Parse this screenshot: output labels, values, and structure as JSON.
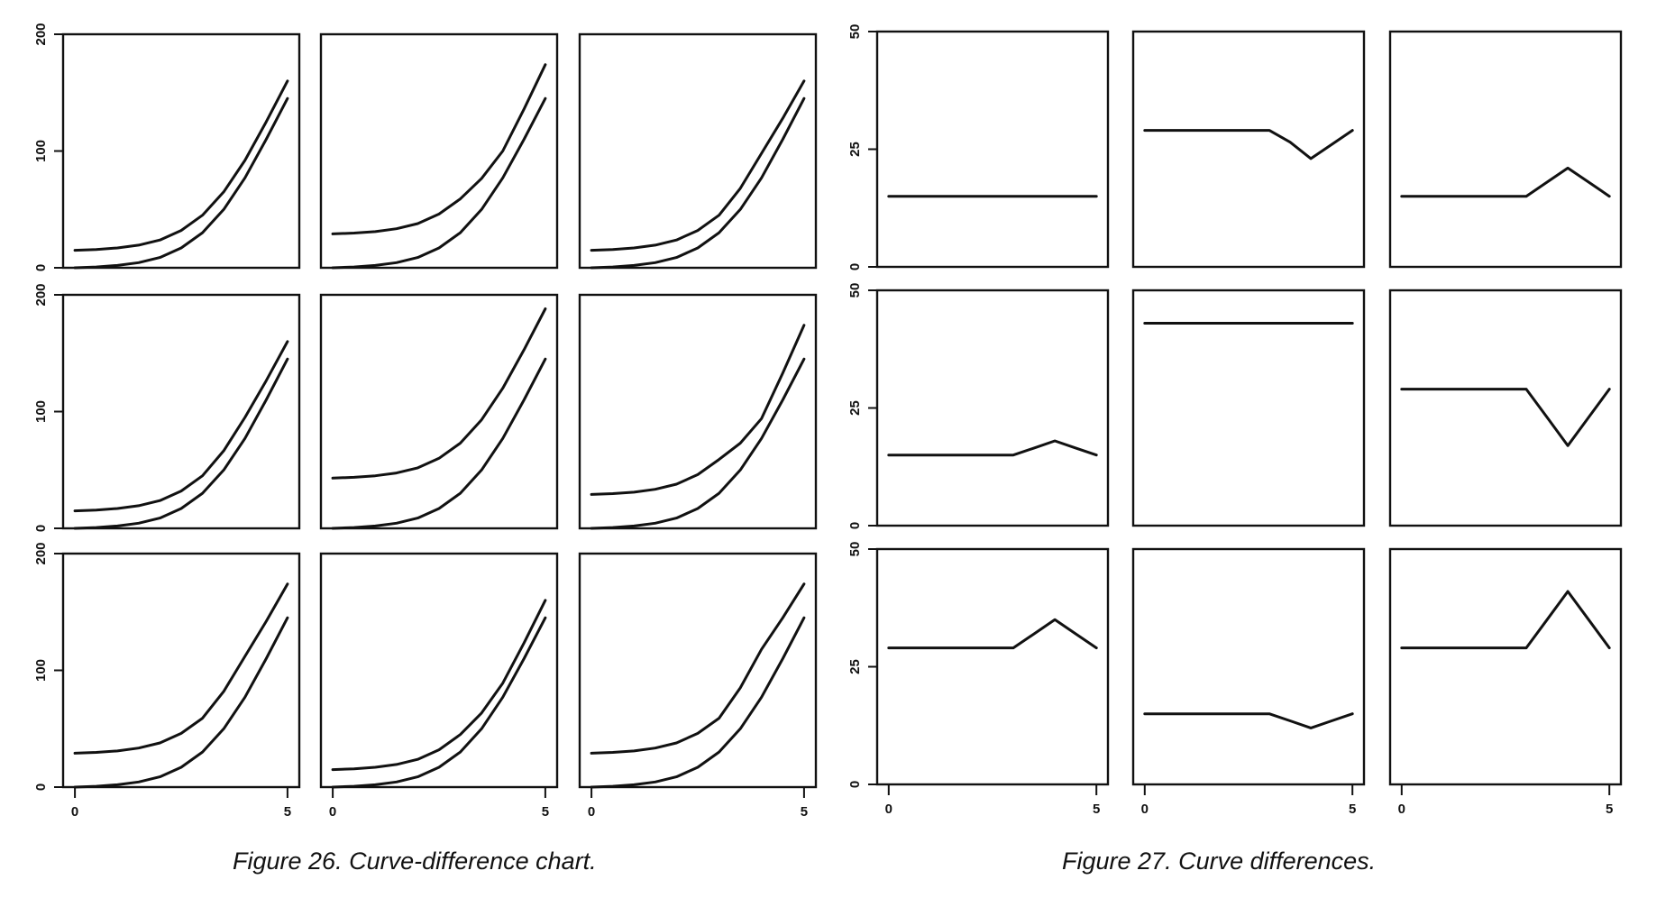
{
  "figure26": {
    "caption": "Figure 26. Curve-difference chart.",
    "y_ticks": [
      "0",
      "100",
      "200"
    ],
    "x_ticks": [
      "0",
      "5"
    ]
  },
  "figure27": {
    "caption": "Figure 27. Curve differences.",
    "y_ticks": [
      "0",
      "25",
      "50"
    ],
    "x_ticks": [
      "0",
      "5"
    ]
  },
  "chart_data": [
    {
      "type": "line",
      "layout": "3x3 small multiples",
      "xlim": [
        0,
        5
      ],
      "ylim": [
        0,
        200
      ],
      "x": [
        0,
        0.5,
        1,
        1.5,
        2,
        2.5,
        3,
        3.5,
        4,
        4.5,
        5
      ],
      "x_ticks": [
        0,
        5
      ],
      "y_ticks": [
        0,
        100,
        200
      ],
      "grid": false,
      "base_curve": [
        0,
        0.7,
        2.0,
        4.4,
        8.8,
        17,
        30,
        50,
        77,
        110,
        145
      ],
      "panels": [
        {
          "row": 1,
          "col": 1,
          "offset": [
            15,
            15,
            15,
            15,
            15,
            15,
            15,
            15,
            15,
            15,
            15
          ]
        },
        {
          "row": 1,
          "col": 2,
          "offset": [
            29,
            29,
            29,
            29,
            29,
            29,
            29,
            26.5,
            23,
            26,
            29
          ]
        },
        {
          "row": 1,
          "col": 3,
          "offset": [
            15,
            15,
            15,
            15,
            15,
            15,
            15,
            18,
            21,
            18,
            15
          ]
        },
        {
          "row": 2,
          "col": 1,
          "offset": [
            15,
            15,
            15,
            15,
            15,
            15,
            15,
            16.5,
            18,
            16.5,
            15
          ]
        },
        {
          "row": 2,
          "col": 2,
          "offset": [
            43,
            43,
            43,
            43,
            43,
            43,
            43,
            43,
            43,
            43,
            43
          ]
        },
        {
          "row": 2,
          "col": 3,
          "offset": [
            29,
            29,
            29,
            29,
            29,
            29,
            29,
            23,
            17,
            23,
            29
          ]
        },
        {
          "row": 3,
          "col": 1,
          "offset": [
            29,
            29,
            29,
            29,
            29,
            29,
            29,
            32,
            35,
            32,
            29
          ]
        },
        {
          "row": 3,
          "col": 2,
          "offset": [
            15,
            15,
            15,
            15,
            15,
            15,
            15,
            13.5,
            12,
            13.5,
            15
          ]
        },
        {
          "row": 3,
          "col": 3,
          "offset": [
            29,
            29,
            29,
            29,
            29,
            29,
            29,
            35,
            41,
            35,
            29
          ]
        }
      ]
    },
    {
      "type": "line",
      "layout": "3x3 small multiples",
      "xlim": [
        0,
        5
      ],
      "ylim": [
        0,
        50
      ],
      "x": [
        0,
        0.5,
        1,
        1.5,
        2,
        2.5,
        3,
        3.5,
        4,
        4.5,
        5
      ],
      "x_ticks": [
        0,
        5
      ],
      "y_ticks": [
        0,
        25,
        50
      ],
      "grid": false,
      "panels": [
        {
          "row": 1,
          "col": 1,
          "y": [
            15,
            15,
            15,
            15,
            15,
            15,
            15,
            15,
            15,
            15,
            15
          ]
        },
        {
          "row": 1,
          "col": 2,
          "y": [
            29,
            29,
            29,
            29,
            29,
            29,
            29,
            26.5,
            23,
            26,
            29
          ]
        },
        {
          "row": 1,
          "col": 3,
          "y": [
            15,
            15,
            15,
            15,
            15,
            15,
            15,
            18,
            21,
            18,
            15
          ]
        },
        {
          "row": 2,
          "col": 1,
          "y": [
            15,
            15,
            15,
            15,
            15,
            15,
            15,
            16.5,
            18,
            16.5,
            15
          ]
        },
        {
          "row": 2,
          "col": 2,
          "y": [
            43,
            43,
            43,
            43,
            43,
            43,
            43,
            43,
            43,
            43,
            43
          ]
        },
        {
          "row": 2,
          "col": 3,
          "y": [
            29,
            29,
            29,
            29,
            29,
            29,
            29,
            23,
            17,
            23,
            29
          ]
        },
        {
          "row": 3,
          "col": 1,
          "y": [
            29,
            29,
            29,
            29,
            29,
            29,
            29,
            32,
            35,
            32,
            29
          ]
        },
        {
          "row": 3,
          "col": 2,
          "y": [
            15,
            15,
            15,
            15,
            15,
            15,
            15,
            13.5,
            12,
            13.5,
            15
          ]
        },
        {
          "row": 3,
          "col": 3,
          "y": [
            29,
            29,
            29,
            29,
            29,
            29,
            29,
            35,
            41,
            35,
            29
          ]
        }
      ]
    }
  ]
}
